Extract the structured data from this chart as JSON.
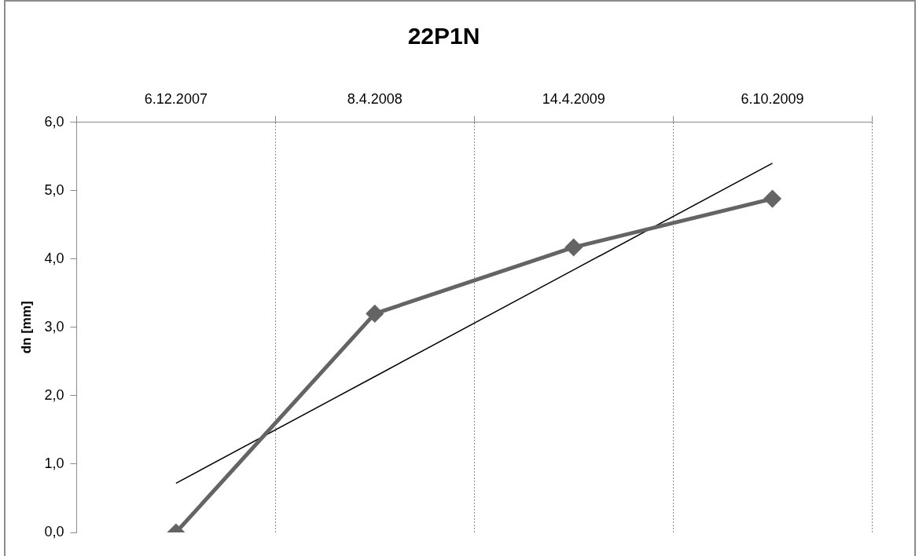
{
  "chart_data": {
    "type": "line",
    "title": "22P1N",
    "ylabel": "dn [mm]",
    "categories": [
      "6.12.2007",
      "8.4.2008",
      "14.4.2009",
      "6.10.2009"
    ],
    "series": [
      {
        "color": "#646464",
        "values": [
          0.0,
          3.2,
          4.17,
          4.88
        ],
        "marker": "diamond"
      },
      {
        "type": "line",
        "color": "#000000",
        "values": [
          0.72,
          2.28,
          3.84,
          5.4
        ],
        "marker": "none"
      }
    ],
    "ylim": [
      0,
      6
    ],
    "yticks": [
      {
        "value": 0,
        "label": "0,0"
      },
      {
        "value": 1,
        "label": "1,0"
      },
      {
        "value": 2,
        "label": "2,0"
      },
      {
        "value": 3,
        "label": "3,0"
      },
      {
        "value": 4,
        "label": "4,0"
      },
      {
        "value": 5,
        "label": "5,0"
      },
      {
        "value": 6,
        "label": "6,0"
      }
    ],
    "grid": "x",
    "legend": false
  }
}
